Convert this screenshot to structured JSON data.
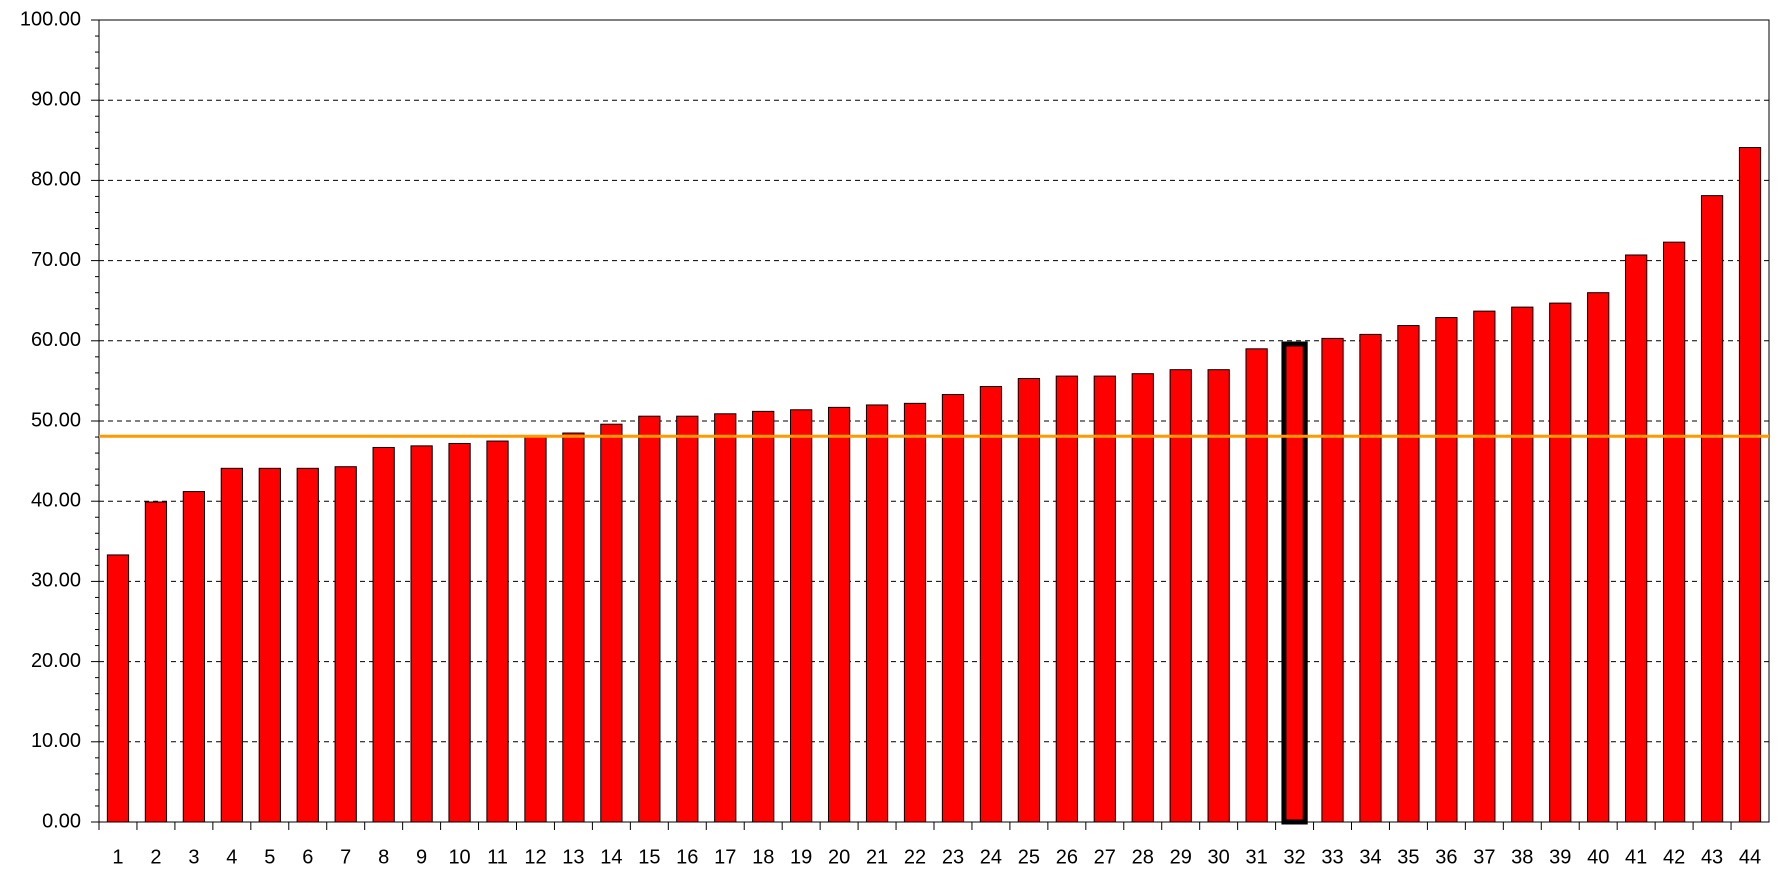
{
  "chart_data": {
    "type": "bar",
    "categories": [
      "1",
      "2",
      "3",
      "4",
      "5",
      "6",
      "7",
      "8",
      "9",
      "10",
      "11",
      "12",
      "13",
      "14",
      "15",
      "16",
      "17",
      "18",
      "19",
      "20",
      "21",
      "22",
      "23",
      "24",
      "25",
      "26",
      "27",
      "28",
      "29",
      "30",
      "31",
      "32",
      "33",
      "34",
      "35",
      "36",
      "37",
      "38",
      "39",
      "40",
      "41",
      "42",
      "43",
      "44"
    ],
    "values": [
      33.3,
      39.9,
      41.2,
      44.1,
      44.1,
      44.1,
      44.3,
      46.7,
      46.9,
      47.2,
      47.5,
      48.1,
      48.5,
      49.6,
      50.6,
      50.6,
      50.9,
      51.2,
      51.4,
      51.7,
      52.0,
      52.2,
      53.3,
      54.3,
      55.3,
      55.6,
      55.6,
      55.9,
      56.4,
      56.4,
      59.0,
      59.6,
      60.3,
      60.8,
      61.9,
      62.9,
      63.7,
      64.2,
      64.7,
      66.0,
      70.7,
      72.3,
      78.1,
      84.1
    ],
    "color": "#ff0000",
    "highlighted_category": "32",
    "reference_line": {
      "value": 48.1,
      "color": "#ff9900"
    },
    "ylim": [
      0,
      100
    ],
    "yticks": [
      {
        "value": 0,
        "label": "0.00"
      },
      {
        "value": 10,
        "label": "10.00"
      },
      {
        "value": 20,
        "label": "20.00"
      },
      {
        "value": 30,
        "label": "30.00"
      },
      {
        "value": 40,
        "label": "40.00"
      },
      {
        "value": 50,
        "label": "50.00"
      },
      {
        "value": 60,
        "label": "60.00"
      },
      {
        "value": 70,
        "label": "70.00"
      },
      {
        "value": 80,
        "label": "80.00"
      },
      {
        "value": 90,
        "label": "90.00"
      },
      {
        "value": 100,
        "label": "100.00"
      }
    ],
    "grid": true
  }
}
